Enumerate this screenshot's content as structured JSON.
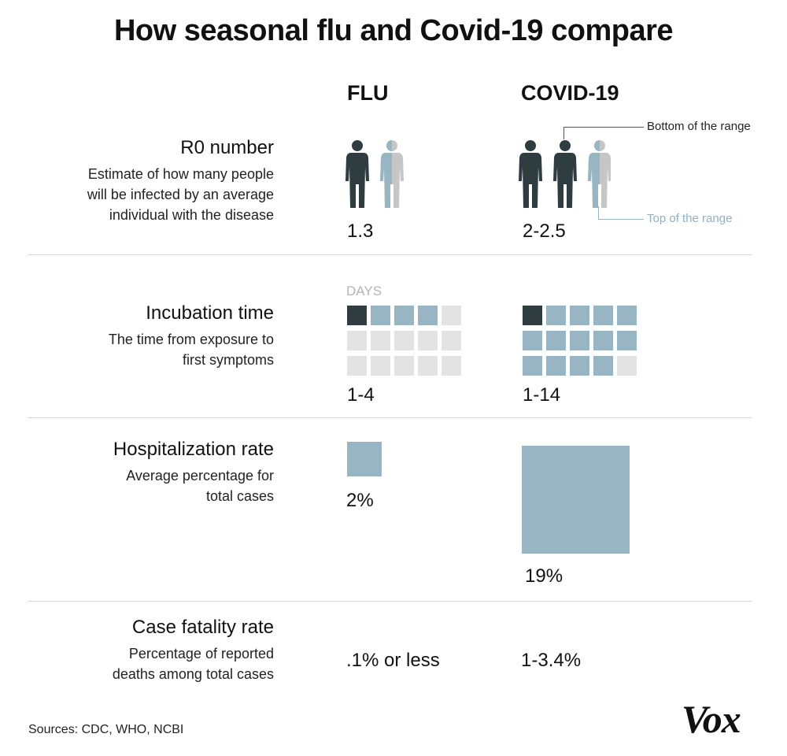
{
  "title": "How seasonal flu and Covid-19 compare",
  "columns": {
    "flu": "FLU",
    "covid": "COVID-19"
  },
  "colors": {
    "dark": "#2f3c40",
    "blue": "#97b5c3",
    "gray": "#c6c6c6",
    "light": "#e3e3e3"
  },
  "rows": {
    "r0": {
      "heading": "R0 number",
      "description": [
        "Estimate of how many people",
        "will be infected by an average",
        "individual with the disease"
      ],
      "flu_value": "1.3",
      "covid_value": "2-2.5",
      "annotation_bottom": "Bottom of the range",
      "annotation_top": "Top of the range",
      "flu_people": [
        1,
        0.3
      ],
      "covid_people": [
        1,
        1,
        0.5
      ]
    },
    "incubation": {
      "heading": "Incubation time",
      "description": [
        "The time from exposure to",
        "first symptoms"
      ],
      "days_label": "DAYS",
      "flu_value": "1-4",
      "covid_value": "1-14",
      "grid_days": 15,
      "flu_range": [
        1,
        4
      ],
      "covid_range": [
        1,
        14
      ]
    },
    "hospitalization": {
      "heading": "Hospitalization rate",
      "description": [
        "Average percentage for",
        "total cases"
      ],
      "flu_value": "2%",
      "covid_value": "19%",
      "flu_rate": 2,
      "covid_rate": 19
    },
    "fatality": {
      "heading": "Case fatality rate",
      "description": [
        "Percentage of reported",
        "deaths among total cases"
      ],
      "flu_value": ".1% or less",
      "covid_value": "1-3.4%"
    }
  },
  "sources": "Sources: CDC, WHO,  NCBI",
  "logo": "Vox"
}
